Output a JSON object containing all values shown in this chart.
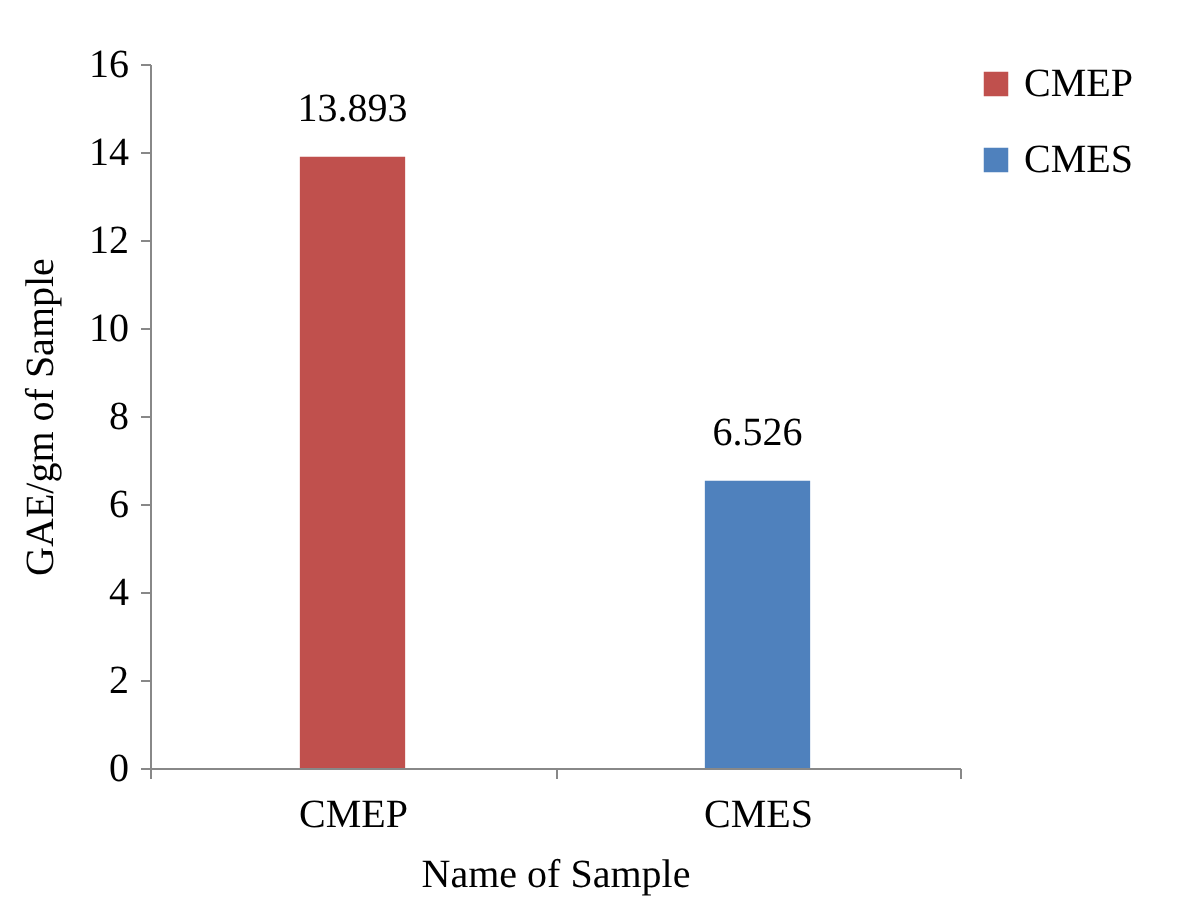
{
  "chart_data": {
    "type": "bar",
    "xlabel": "Name of Sample",
    "ylabel": "GAE/gm of Sample",
    "categories": [
      "CMEP",
      "CMES"
    ],
    "series": [
      {
        "name": "CMEP",
        "color": "#c0504d",
        "values": [
          13.893,
          null
        ]
      },
      {
        "name": "CMES",
        "color": "#4f81bd",
        "values": [
          null,
          6.526
        ]
      }
    ],
    "ylim": [
      0,
      16
    ],
    "yticks": [
      0,
      2,
      4,
      6,
      8,
      10,
      12,
      14,
      16
    ],
    "data_labels": true,
    "legend": "right",
    "grid": false
  }
}
